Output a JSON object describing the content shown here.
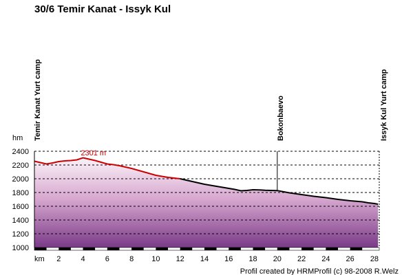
{
  "chart_data": {
    "type": "area",
    "title": "30/6 Temir Kanat - Issyk Kul",
    "xlabel": "km",
    "ylabel": "hm",
    "xlim": [
      0,
      28.4
    ],
    "ylim": [
      1000,
      2400
    ],
    "x_ticks": [
      2,
      4,
      6,
      8,
      10,
      12,
      14,
      16,
      18,
      20,
      22,
      24,
      26,
      28
    ],
    "y_ticks": [
      1000,
      1200,
      1400,
      1600,
      1800,
      2000,
      2200,
      2400
    ],
    "grid": true,
    "series": [
      {
        "color_highlight": "#cc0000",
        "color_base": "#000000",
        "highlight_until_km": 12,
        "x": [
          0,
          0.5,
          1,
          1.5,
          2,
          2.5,
          3,
          3.5,
          4,
          4.5,
          5,
          5.5,
          6,
          6.5,
          7,
          7.5,
          8,
          8.5,
          9,
          9.5,
          10,
          10.5,
          11,
          11.5,
          12,
          13,
          14,
          15,
          16,
          16.5,
          17,
          17.5,
          18,
          18.5,
          19,
          19.5,
          20,
          21,
          22,
          23,
          24,
          25,
          26,
          27,
          27.5,
          28,
          28.3
        ],
        "y": [
          2255,
          2235,
          2215,
          2230,
          2250,
          2260,
          2265,
          2275,
          2305,
          2285,
          2265,
          2240,
          2215,
          2205,
          2190,
          2170,
          2150,
          2125,
          2100,
          2075,
          2050,
          2035,
          2020,
          2010,
          2000,
          1960,
          1920,
          1890,
          1860,
          1845,
          1825,
          1830,
          1840,
          1838,
          1833,
          1830,
          1828,
          1795,
          1770,
          1745,
          1725,
          1700,
          1680,
          1665,
          1650,
          1640,
          1630
        ]
      }
    ],
    "annotations": [
      {
        "label": "2301 m",
        "x": 4.5,
        "y": 2301
      }
    ],
    "waypoints": [
      {
        "label": "Temir Kanat Yurt camp",
        "x": 0,
        "y": 2255
      },
      {
        "label": "Bokonbaevo",
        "x": 20,
        "y": 1828
      },
      {
        "label": "Issyk Kul Yurt camp",
        "x": 28.3,
        "y": 1630
      }
    ],
    "footer": "Profil created by HRMProfil (c) 98-2008 R.Welz"
  }
}
